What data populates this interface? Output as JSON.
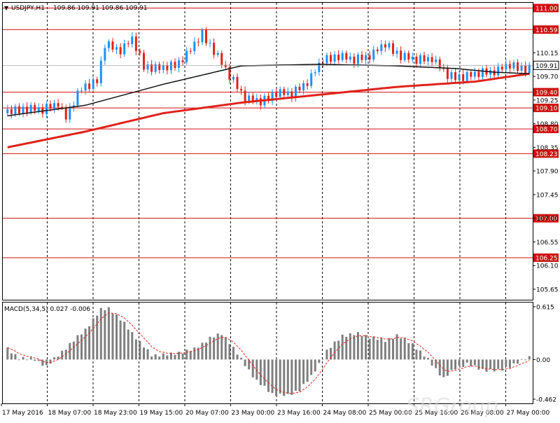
{
  "chart_data": [
    {
      "type": "candlestick",
      "symbol_label": "USDJPY,H1",
      "ohlc_label": "109.86 109.91 109.86 109.91",
      "last_price": "109.91",
      "ylim": [
        105.45,
        111.1
      ],
      "y_ticks": [
        "110.15",
        "109.70",
        "109.25",
        "108.80",
        "108.35",
        "107.90",
        "107.45",
        "107.00",
        "106.55",
        "106.10",
        "105.65"
      ],
      "level_lines": [
        {
          "value": 111.0,
          "label": "111.00"
        },
        {
          "value": 110.59,
          "label": "110.59"
        },
        {
          "value": 109.4,
          "label": "109.40"
        },
        {
          "value": 109.1,
          "label": "109.10"
        },
        {
          "value": 108.7,
          "label": "108.70"
        },
        {
          "value": 108.23,
          "label": "108.23"
        },
        {
          "value": 107.0,
          "label": "107.00"
        },
        {
          "value": 106.25,
          "label": "106.25"
        }
      ],
      "x_labels": [
        "17 May 2016",
        "18 May 07:00",
        "18 May 23:00",
        "19 May 15:00",
        "20 May 07:00",
        "23 May 00:00",
        "23 May 16:00",
        "24 May 08:00",
        "25 May 00:00",
        "25 May 16:00",
        "26 May 08:00",
        "27 May 00:00"
      ],
      "price_path": [
        [
          0,
          109.0
        ],
        [
          6,
          109.1
        ],
        [
          10,
          109.05
        ],
        [
          14,
          109.2
        ],
        [
          16,
          108.9
        ],
        [
          20,
          109.5
        ],
        [
          24,
          109.6
        ],
        [
          26,
          110.3
        ],
        [
          30,
          110.2
        ],
        [
          33,
          110.4
        ],
        [
          36,
          109.9
        ],
        [
          40,
          109.85
        ],
        [
          44,
          109.9
        ],
        [
          48,
          110.2
        ],
        [
          51,
          110.5
        ],
        [
          54,
          110.2
        ],
        [
          58,
          109.7
        ],
        [
          62,
          109.3
        ],
        [
          66,
          109.2
        ],
        [
          70,
          109.4
        ],
        [
          74,
          109.35
        ],
        [
          78,
          109.6
        ],
        [
          82,
          110.0
        ],
        [
          86,
          110.1
        ],
        [
          90,
          110.0
        ],
        [
          94,
          110.1
        ],
        [
          98,
          110.3
        ],
        [
          102,
          110.1
        ],
        [
          106,
          110.0
        ],
        [
          110,
          110.05
        ],
        [
          114,
          109.7
        ],
        [
          118,
          109.7
        ],
        [
          122,
          109.75
        ],
        [
          126,
          109.8
        ],
        [
          130,
          109.9
        ],
        [
          134,
          109.85
        ]
      ],
      "price_noise": [
        0.06,
        -0.05,
        0.08,
        -0.07,
        0.04,
        -0.09,
        0.07,
        -0.03,
        0.05,
        -0.06,
        0.09,
        -0.04,
        0.03,
        -0.08,
        0.06,
        -0.02
      ],
      "sma_slow": [
        [
          0,
          108.35
        ],
        [
          20,
          108.65
        ],
        [
          40,
          109.0
        ],
        [
          60,
          109.2
        ],
        [
          80,
          109.35
        ],
        [
          100,
          109.5
        ],
        [
          120,
          109.6
        ],
        [
          134,
          109.75
        ]
      ],
      "sma_fast": [
        [
          0,
          108.95
        ],
        [
          20,
          109.15
        ],
        [
          40,
          109.55
        ],
        [
          60,
          109.9
        ],
        [
          80,
          109.93
        ],
        [
          100,
          109.9
        ],
        [
          115,
          109.85
        ],
        [
          125,
          109.78
        ],
        [
          134,
          109.75
        ]
      ],
      "colors": {
        "up": "#1e90ff",
        "down": "#e2231a",
        "level": "#d01010",
        "sma_slow": "#e0221b",
        "sma_fast": "#111111",
        "grid": "#000000"
      }
    },
    {
      "type": "bar",
      "label": "MACD(5,34,5) 0.027 -0.006",
      "ylim": [
        -0.462,
        0.615
      ],
      "y_ticks": [
        "0.615",
        "0.00",
        "-0.462"
      ],
      "hist_path": [
        [
          0,
          0.12
        ],
        [
          3,
          0.02
        ],
        [
          7,
          0.0
        ],
        [
          10,
          -0.08
        ],
        [
          13,
          0.05
        ],
        [
          17,
          0.22
        ],
        [
          20,
          0.35
        ],
        [
          24,
          0.58
        ],
        [
          26,
          0.6
        ],
        [
          30,
          0.42
        ],
        [
          34,
          0.2
        ],
        [
          37,
          0.05
        ],
        [
          42,
          0.06
        ],
        [
          48,
          0.12
        ],
        [
          52,
          0.25
        ],
        [
          55,
          0.3
        ],
        [
          57,
          0.2
        ],
        [
          60,
          0.0
        ],
        [
          64,
          -0.25
        ],
        [
          68,
          -0.4
        ],
        [
          72,
          -0.42
        ],
        [
          75,
          -0.35
        ],
        [
          78,
          -0.2
        ],
        [
          82,
          0.1
        ],
        [
          86,
          0.28
        ],
        [
          90,
          0.3
        ],
        [
          94,
          0.25
        ],
        [
          97,
          0.22
        ],
        [
          100,
          0.28
        ],
        [
          104,
          0.18
        ],
        [
          108,
          0.0
        ],
        [
          112,
          -0.22
        ],
        [
          115,
          -0.1
        ],
        [
          118,
          -0.05
        ],
        [
          122,
          -0.12
        ],
        [
          126,
          -0.13
        ],
        [
          130,
          -0.06
        ],
        [
          134,
          0.03
        ]
      ],
      "hist_noise": [
        0.02,
        -0.015,
        0.01,
        -0.02,
        0.015,
        -0.01
      ],
      "colors": {
        "bar": "#7f7f7f",
        "signal": "#e2231a"
      }
    }
  ],
  "watermark": "SRGroup"
}
